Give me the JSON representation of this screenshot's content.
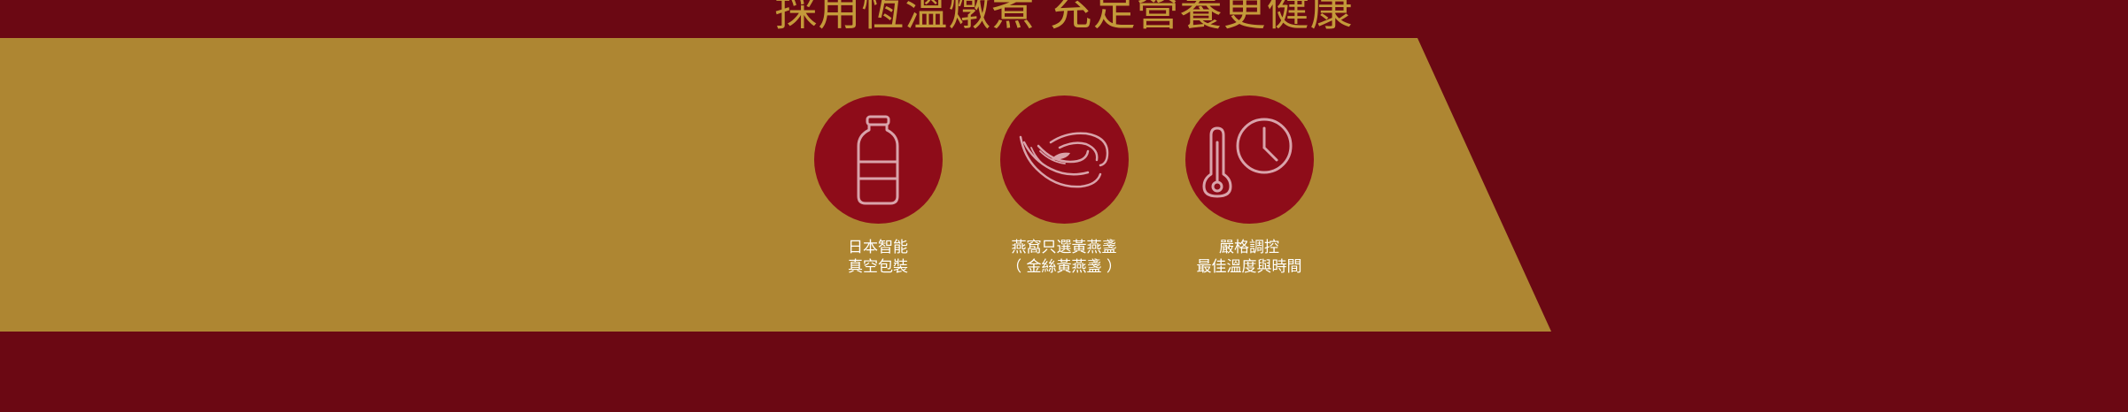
{
  "headline": "採用恆溫燉煮 充足營養更健康",
  "colors": {
    "background": "#6b0813",
    "banner": "#ae8632",
    "circle": "#8e0c19",
    "headline": "#c49a3a",
    "icon_stroke": "#d9a3aa",
    "label_text": "#ffffff"
  },
  "features": [
    {
      "icon": "bottle-icon",
      "line1": "日本智能",
      "line2": "真空包裝"
    },
    {
      "icon": "birds-nest-icon",
      "line1": "燕窩只選黃燕盞",
      "line2": "（ 金絲黃燕盞 ）"
    },
    {
      "icon": "thermometer-clock-icon",
      "line1": "嚴格調控",
      "line2": "最佳溫度與時間"
    }
  ]
}
